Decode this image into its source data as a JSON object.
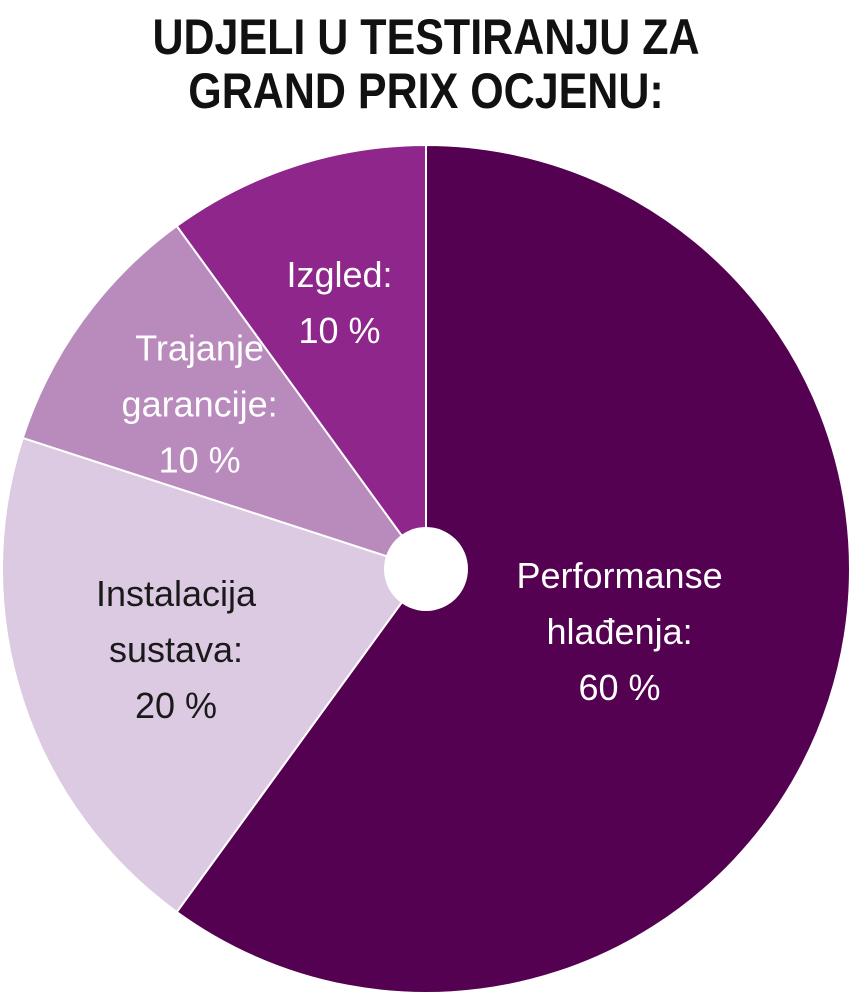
{
  "title_lines": [
    "UDJELI U TESTIRANJU ZA",
    "GRAND PRIX OCJENU:"
  ],
  "colors": {
    "background": "#ffffff",
    "title": "#111111",
    "separator": "#ffffff",
    "center_hole": "#ffffff"
  },
  "chart_data": {
    "type": "pie",
    "title": "UDJELI U TESTIRANJU ZA GRAND PRIX OCJENU:",
    "unit": "%",
    "slices": [
      {
        "label_lines": [
          "Performanse",
          "hlađenja:",
          "60 %"
        ],
        "value": 60,
        "color": "#530150",
        "text_color": "#ffffff"
      },
      {
        "label_lines": [
          "Instalacija",
          "sustava:",
          "20 %"
        ],
        "value": 20,
        "color": "#dcc9e2",
        "text_color": "#1a1a1a"
      },
      {
        "label_lines": [
          "Trajanje",
          "garancije:",
          "10 %"
        ],
        "value": 10,
        "color": "#b98bbd",
        "text_color": "#ffffff"
      },
      {
        "label_lines": [
          "Izgled:",
          "10 %"
        ],
        "value": 10,
        "color": "#8e268b",
        "text_color": "#ffffff"
      }
    ]
  }
}
